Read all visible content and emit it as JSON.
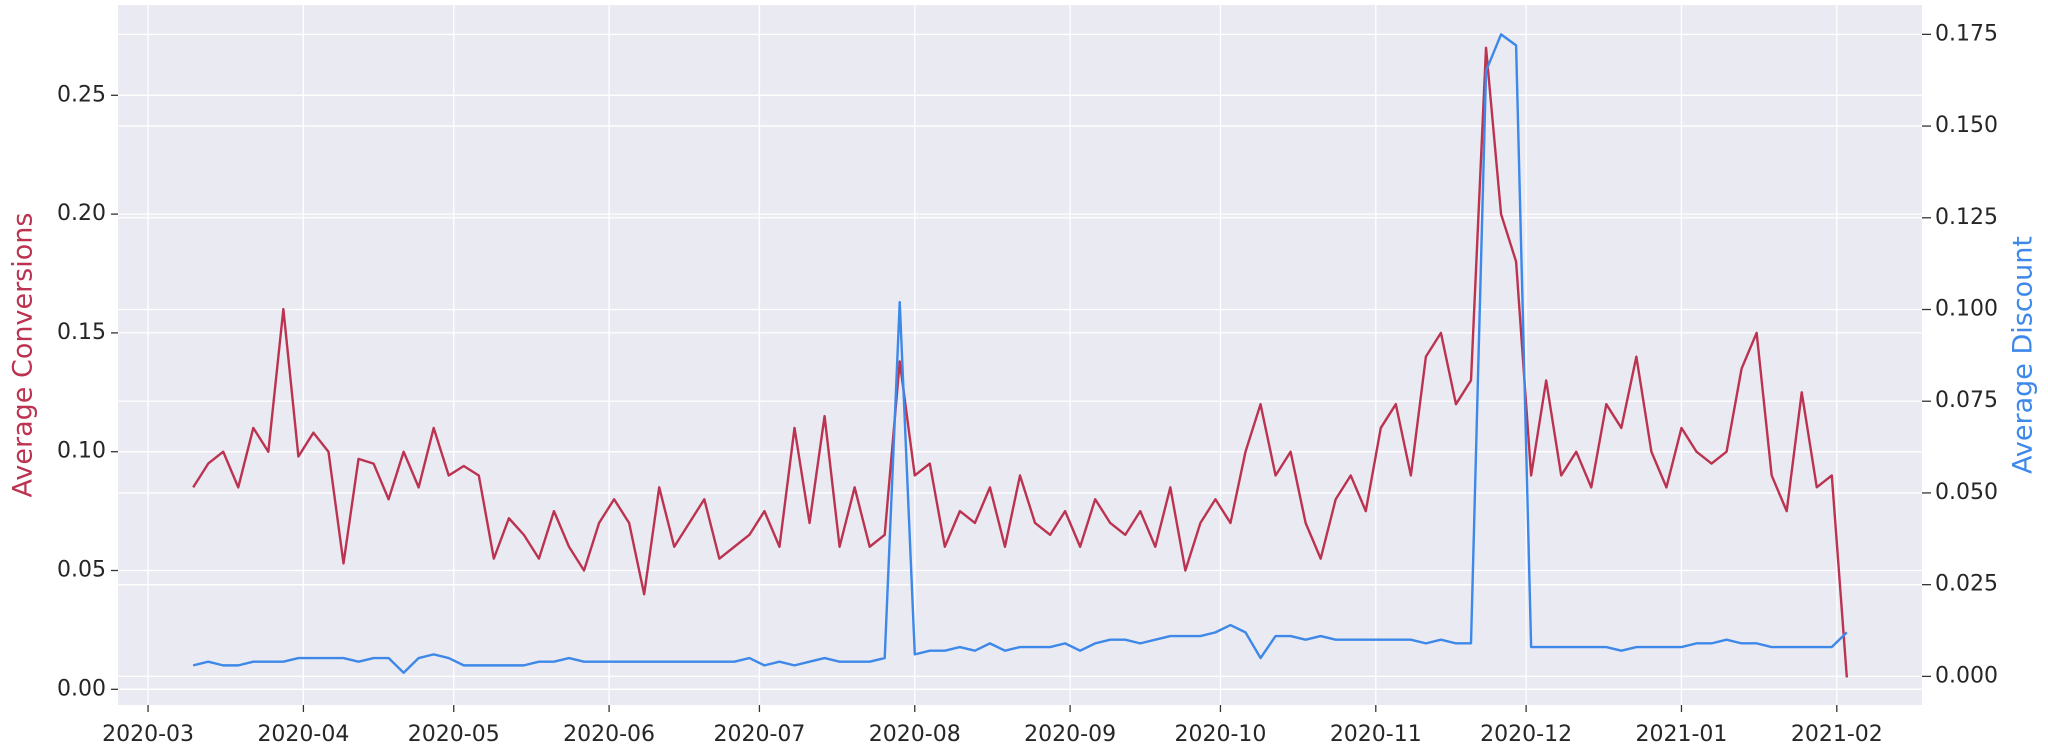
{
  "chart_data": {
    "type": "line",
    "ylabel": "Average Conversions",
    "y2label": "Average Discount",
    "x": [
      "2020-03-10",
      "2020-03-13",
      "2020-03-16",
      "2020-03-19",
      "2020-03-22",
      "2020-03-25",
      "2020-03-28",
      "2020-03-31",
      "2020-04-03",
      "2020-04-06",
      "2020-04-09",
      "2020-04-12",
      "2020-04-15",
      "2020-04-18",
      "2020-04-21",
      "2020-04-24",
      "2020-04-27",
      "2020-04-30",
      "2020-05-03",
      "2020-05-06",
      "2020-05-09",
      "2020-05-12",
      "2020-05-15",
      "2020-05-18",
      "2020-05-21",
      "2020-05-24",
      "2020-05-27",
      "2020-05-30",
      "2020-06-02",
      "2020-06-05",
      "2020-06-08",
      "2020-06-11",
      "2020-06-14",
      "2020-06-17",
      "2020-06-20",
      "2020-06-23",
      "2020-06-26",
      "2020-06-29",
      "2020-07-02",
      "2020-07-05",
      "2020-07-08",
      "2020-07-11",
      "2020-07-14",
      "2020-07-17",
      "2020-07-20",
      "2020-07-23",
      "2020-07-26",
      "2020-07-29",
      "2020-08-01",
      "2020-08-04",
      "2020-08-07",
      "2020-08-10",
      "2020-08-13",
      "2020-08-16",
      "2020-08-19",
      "2020-08-22",
      "2020-08-25",
      "2020-08-28",
      "2020-08-31",
      "2020-09-03",
      "2020-09-06",
      "2020-09-09",
      "2020-09-12",
      "2020-09-15",
      "2020-09-18",
      "2020-09-21",
      "2020-09-24",
      "2020-09-27",
      "2020-09-30",
      "2020-10-03",
      "2020-10-06",
      "2020-10-09",
      "2020-10-12",
      "2020-10-15",
      "2020-10-18",
      "2020-10-21",
      "2020-10-24",
      "2020-10-27",
      "2020-10-30",
      "2020-11-02",
      "2020-11-05",
      "2020-11-08",
      "2020-11-11",
      "2020-11-14",
      "2020-11-17",
      "2020-11-20",
      "2020-11-23",
      "2020-11-26",
      "2020-11-29",
      "2020-12-02",
      "2020-12-05",
      "2020-12-08",
      "2020-12-11",
      "2020-12-14",
      "2020-12-17",
      "2020-12-20",
      "2020-12-23",
      "2020-12-26",
      "2020-12-29",
      "2021-01-01",
      "2021-01-04",
      "2021-01-07",
      "2021-01-10",
      "2021-01-13",
      "2021-01-16",
      "2021-01-19",
      "2021-01-22",
      "2021-01-25",
      "2021-01-28",
      "2021-01-31",
      "2021-02-03"
    ],
    "series": [
      {
        "color": "#bb3350",
        "values": [
          0.085,
          0.095,
          0.1,
          0.085,
          0.11,
          0.1,
          0.16,
          0.098,
          0.108,
          0.1,
          0.053,
          0.097,
          0.095,
          0.08,
          0.1,
          0.085,
          0.11,
          0.09,
          0.094,
          0.09,
          0.055,
          0.072,
          0.065,
          0.055,
          0.075,
          0.06,
          0.05,
          0.07,
          0.08,
          0.07,
          0.04,
          0.085,
          0.06,
          0.07,
          0.08,
          0.055,
          0.06,
          0.065,
          0.075,
          0.06,
          0.11,
          0.07,
          0.115,
          0.06,
          0.085,
          0.06,
          0.065,
          0.138,
          0.09,
          0.095,
          0.06,
          0.075,
          0.07,
          0.085,
          0.06,
          0.09,
          0.07,
          0.065,
          0.075,
          0.06,
          0.08,
          0.07,
          0.065,
          0.075,
          0.06,
          0.085,
          0.05,
          0.07,
          0.08,
          0.07,
          0.1,
          0.12,
          0.09,
          0.1,
          0.07,
          0.055,
          0.08,
          0.09,
          0.075,
          0.11,
          0.12,
          0.09,
          0.14,
          0.15,
          0.12,
          0.13,
          0.27,
          0.2,
          0.18,
          0.09,
          0.13,
          0.09,
          0.1,
          0.085,
          0.12,
          0.11,
          0.14,
          0.1,
          0.085,
          0.11,
          0.1,
          0.095,
          0.1,
          0.135,
          0.15,
          0.09,
          0.075,
          0.125,
          0.085,
          0.09,
          0.005
        ]
      },
      {
        "color": "#3d88e8",
        "axis": "y2",
        "values": [
          0.003,
          0.004,
          0.003,
          0.003,
          0.004,
          0.004,
          0.004,
          0.005,
          0.005,
          0.005,
          0.005,
          0.004,
          0.005,
          0.005,
          0.001,
          0.005,
          0.006,
          0.005,
          0.003,
          0.003,
          0.003,
          0.003,
          0.003,
          0.004,
          0.004,
          0.005,
          0.004,
          0.004,
          0.004,
          0.004,
          0.004,
          0.004,
          0.004,
          0.004,
          0.004,
          0.004,
          0.004,
          0.005,
          0.003,
          0.004,
          0.003,
          0.004,
          0.005,
          0.004,
          0.004,
          0.004,
          0.005,
          0.102,
          0.006,
          0.007,
          0.007,
          0.008,
          0.007,
          0.009,
          0.007,
          0.008,
          0.008,
          0.008,
          0.009,
          0.007,
          0.009,
          0.01,
          0.01,
          0.009,
          0.01,
          0.011,
          0.011,
          0.011,
          0.012,
          0.014,
          0.012,
          0.005,
          0.011,
          0.011,
          0.01,
          0.011,
          0.01,
          0.01,
          0.01,
          0.01,
          0.01,
          0.01,
          0.009,
          0.01,
          0.009,
          0.009,
          0.165,
          0.175,
          0.172,
          0.008,
          0.008,
          0.008,
          0.008,
          0.008,
          0.008,
          0.007,
          0.008,
          0.008,
          0.008,
          0.008,
          0.009,
          0.009,
          0.01,
          0.009,
          0.009,
          0.008,
          0.008,
          0.008,
          0.008,
          0.008,
          0.012
        ]
      }
    ],
    "xlim": [
      "2020-02-24",
      "2021-02-18"
    ],
    "xticks": [
      "2020-03",
      "2020-04",
      "2020-05",
      "2020-06",
      "2020-07",
      "2020-08",
      "2020-09",
      "2020-10",
      "2020-11",
      "2020-12",
      "2021-01",
      "2021-02"
    ],
    "ylim": [
      -0.0066,
      0.288
    ],
    "yticks": [
      {
        "value": 0,
        "label": "0.00"
      },
      {
        "value": 0.05,
        "label": "0.05"
      },
      {
        "value": 0.1,
        "label": "0.10"
      },
      {
        "value": 0.15,
        "label": "0.15"
      },
      {
        "value": 0.2,
        "label": "0.20"
      },
      {
        "value": 0.25,
        "label": "0.25"
      }
    ],
    "y2lim": [
      -0.0078,
      0.183
    ],
    "y2ticks": [
      {
        "value": 0,
        "label": "0.000"
      },
      {
        "value": 0.025,
        "label": "0.025"
      },
      {
        "value": 0.05,
        "label": "0.050"
      },
      {
        "value": 0.075,
        "label": "0.075"
      },
      {
        "value": 0.1,
        "label": "0.100"
      },
      {
        "value": 0.125,
        "label": "0.125"
      },
      {
        "value": 0.15,
        "label": "0.150"
      },
      {
        "value": 0.175,
        "label": "0.175"
      }
    ],
    "grid": true
  }
}
